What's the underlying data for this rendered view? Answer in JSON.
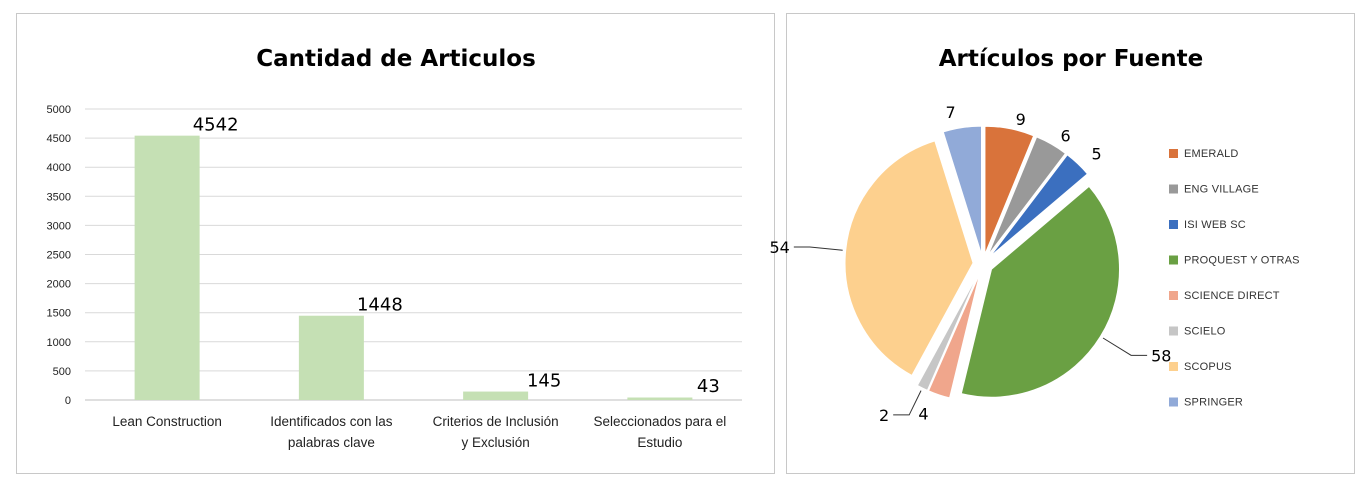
{
  "chart_data": [
    {
      "type": "bar",
      "title": "Cantidad de Articulos",
      "categories": [
        [
          "Lean Construction"
        ],
        [
          "Identificados con las",
          "palabras clave"
        ],
        [
          "Criterios de Inclusión",
          "y Exclusión"
        ],
        [
          "Seleccionados para el",
          "Estudio"
        ]
      ],
      "values": [
        4542,
        1448,
        145,
        43
      ],
      "ylim": [
        0,
        5000
      ],
      "yticks": [
        0,
        500,
        1000,
        1500,
        2000,
        2500,
        3000,
        3500,
        4000,
        4500,
        5000
      ],
      "grid": true,
      "color": "#c5e0b4"
    },
    {
      "type": "pie",
      "title": "Artículos por Fuente",
      "labels": [
        "EMERALD",
        "ENG VILLAGE",
        "ISI WEB SC",
        "PROQUEST Y OTRAS",
        "SCIENCE DIRECT",
        "SCIELO",
        "SCOPUS",
        "SPRINGER"
      ],
      "values": [
        9,
        6,
        5,
        58,
        4,
        2,
        54,
        7
      ],
      "colors": [
        "#d9733b",
        "#999999",
        "#3b6fbf",
        "#6aa043",
        "#f0a68c",
        "#c6c6c6",
        "#fdd08e",
        "#91aad8"
      ],
      "exploded": true,
      "legend_position": "right"
    }
  ]
}
